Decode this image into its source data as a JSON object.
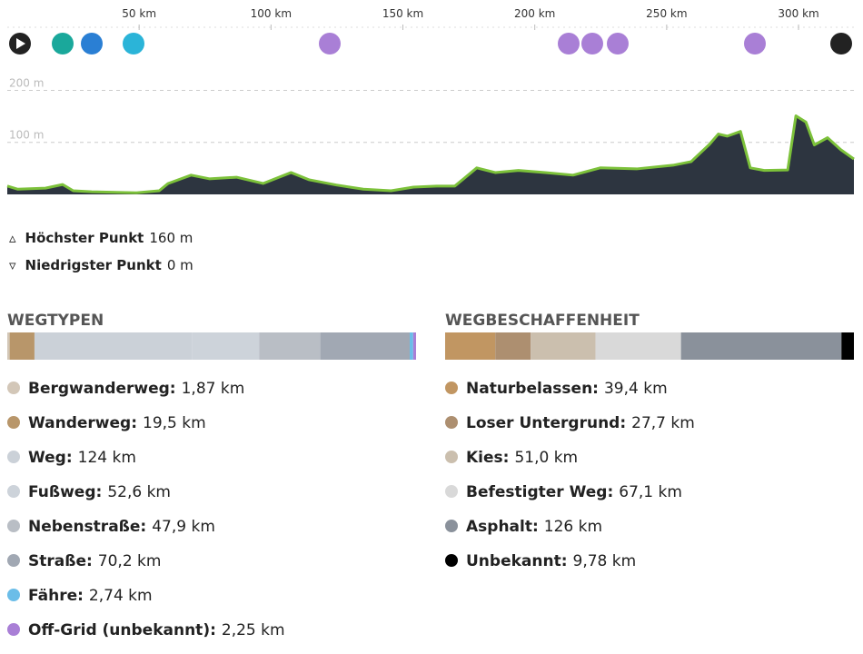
{
  "chart_data": {
    "type": "area",
    "x": [
      0,
      4,
      14.5,
      21,
      25,
      32,
      49,
      57.6,
      61,
      69.7,
      76.6,
      86.9,
      97,
      107.6,
      114.5,
      124.8,
      135,
      145.5,
      154,
      162.8,
      169.7,
      178,
      185,
      193.8,
      204,
      214.5,
      224.8,
      238.6,
      252.4,
      259.3,
      266,
      269.6,
      273,
      278,
      281.7,
      287,
      295.9,
      299,
      302.8,
      306,
      311,
      316,
      321
    ],
    "values": [
      16,
      10,
      12,
      19,
      7,
      5,
      3,
      7,
      21,
      37,
      30,
      33,
      21,
      42,
      28,
      18,
      10,
      7,
      14,
      16,
      16,
      51,
      42,
      46,
      42,
      37,
      51,
      49,
      56,
      63,
      95,
      116,
      112,
      121,
      51,
      46,
      47,
      151,
      139,
      95,
      109,
      86,
      68
    ],
    "color": "#2d3540",
    "line_color": "#7cc13a",
    "xlim": [
      0,
      321
    ],
    "xticks": [
      {
        "value": 50,
        "label": "50 km"
      },
      {
        "value": 100,
        "label": "100 km"
      },
      {
        "value": 150,
        "label": "150 km"
      },
      {
        "value": 200,
        "label": "200 km"
      },
      {
        "value": 250,
        "label": "250 km"
      },
      {
        "value": 300,
        "label": "300 km"
      }
    ],
    "ylim": [
      0,
      220
    ],
    "yticks": [
      {
        "value": 100,
        "label": "100 m"
      },
      {
        "value": 200,
        "label": "200 m"
      }
    ],
    "grid": true
  },
  "stats": [
    {
      "name": "Höchster Punkt",
      "value": "160 m"
    },
    {
      "name": "Niedrigster Punkt",
      "value": "0 m"
    }
  ],
  "wegtypen": {
    "title": "WEGTYPEN",
    "items": [
      {
        "name": "Bergwanderweg:",
        "value": 1.87,
        "value_label": "1,87 km",
        "color": "#d3c7b8"
      },
      {
        "name": "Wanderweg:",
        "value": 19.5,
        "value_label": "19,5 km",
        "color": "#b8966a"
      },
      {
        "name": "Weg:",
        "value": 124,
        "value_label": "124 km",
        "color": "#cbd1d8"
      },
      {
        "name": "Fußweg:",
        "value": 52.6,
        "value_label": "52,6 km",
        "color": "#cdd3da"
      },
      {
        "name": "Nebenstraße:",
        "value": 47.9,
        "value_label": "47,9 km",
        "color": "#b9bec5"
      },
      {
        "name": "Straße:",
        "value": 70.2,
        "value_label": "70,2 km",
        "color": "#a1a8b3"
      },
      {
        "name": "Fähre:",
        "value": 2.74,
        "value_label": "2,74 km",
        "color": "#6bbde8"
      },
      {
        "name": "Off-Grid (unbekannt):",
        "value": 2.25,
        "value_label": "2,25 km",
        "color": "#a97fd6"
      }
    ]
  },
  "wegbeschaffenheit": {
    "title": "WEGBESCHAFFENHEIT",
    "items": [
      {
        "name": "Naturbelassen:",
        "value": 39.4,
        "value_label": "39,4 km",
        "color": "#c19662"
      },
      {
        "name": "Loser Untergrund:",
        "value": 27.7,
        "value_label": "27,7 km",
        "color": "#ad8f70"
      },
      {
        "name": "Kies:",
        "value": 51.0,
        "value_label": "51,0 km",
        "color": "#cbbfae"
      },
      {
        "name": "Befestigter Weg:",
        "value": 67.1,
        "value_label": "67,1 km",
        "color": "#d9d9d9"
      },
      {
        "name": "Asphalt:",
        "value": 126,
        "value_label": "126 km",
        "color": "#8a919b"
      },
      {
        "name": "Unbekannt:",
        "value": 9.78,
        "value_label": "9,78 km",
        "color": "#000000"
      }
    ]
  }
}
